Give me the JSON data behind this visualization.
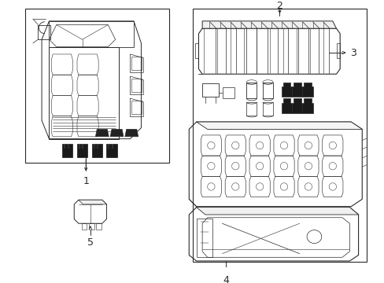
{
  "bg": "#ffffff",
  "lc": "#2a2a2a",
  "lw_main": 0.7,
  "lw_thin": 0.4,
  "lw_thick": 1.0,
  "fig_w": 4.89,
  "fig_h": 3.6,
  "dpi": 100
}
